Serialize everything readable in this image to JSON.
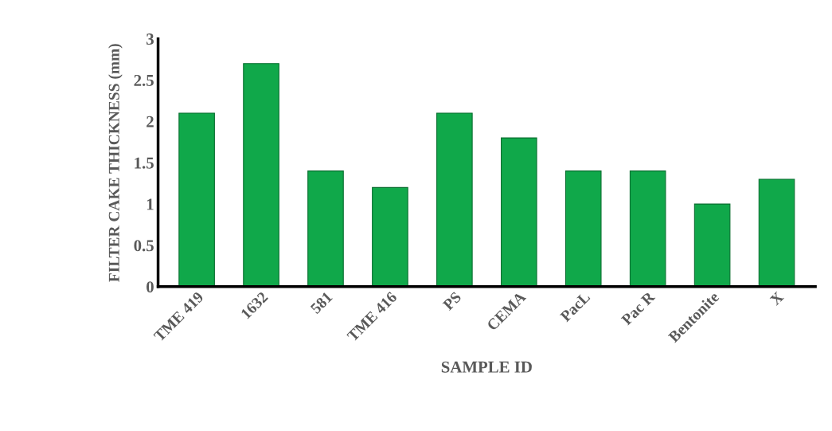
{
  "chart_data": {
    "type": "bar",
    "xlabel": "SAMPLE ID",
    "ylabel": "FILTER CAKE THICKNESS (mm)",
    "categories": [
      "TME 419",
      "1632",
      "581",
      "TME 416",
      "PS",
      "CEMA",
      "PacL",
      "Pac R",
      "Bentonite",
      "X"
    ],
    "values": [
      2.1,
      2.7,
      1.4,
      1.2,
      2.1,
      1.8,
      1.4,
      1.4,
      1.0,
      1.3
    ],
    "color": "#10a84a",
    "ylim": [
      0,
      3
    ],
    "yticks": [
      0,
      0.5,
      1,
      1.5,
      2,
      2.5,
      3
    ],
    "grid": false
  }
}
